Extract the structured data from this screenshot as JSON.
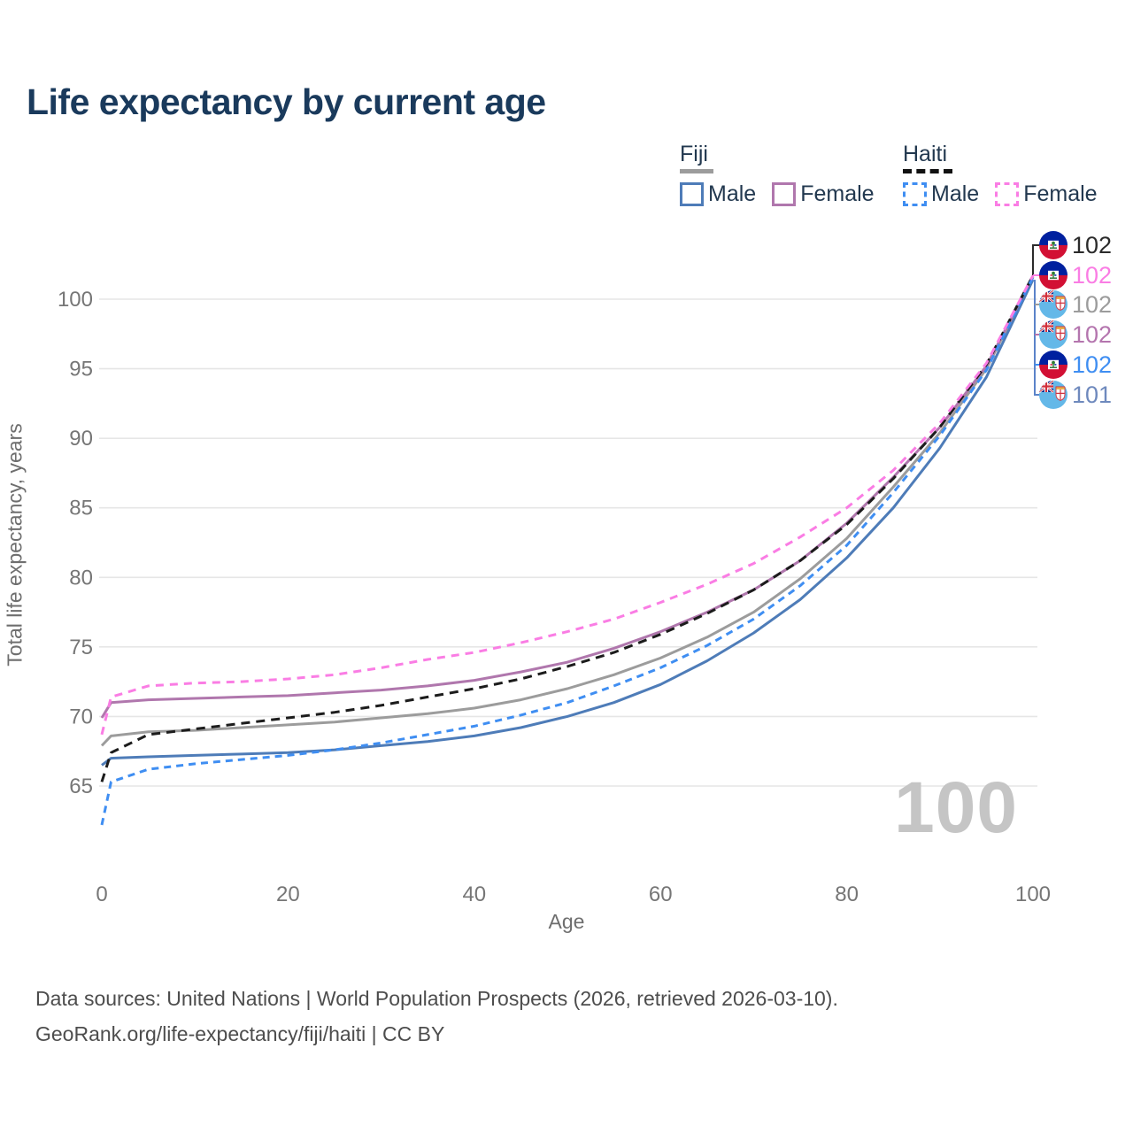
{
  "title": "Life expectancy by current age",
  "watermark": "100",
  "legend": {
    "groups": [
      {
        "label": "Fiji",
        "line_style": "solid",
        "underline_color": "#9c9c9c",
        "items": [
          {
            "label": "Male",
            "color": "#4e7cb8",
            "dashed": false
          },
          {
            "label": "Female",
            "color": "#b077ad",
            "dashed": false
          }
        ]
      },
      {
        "label": "Haiti",
        "line_style": "dashed",
        "underline_color": "#111111",
        "items": [
          {
            "label": "Male",
            "color": "#3f8ef2",
            "dashed": true
          },
          {
            "label": "Female",
            "color": "#fa7de4",
            "dashed": true
          }
        ]
      }
    ]
  },
  "y_axis": {
    "title": "Total life expectancy, years",
    "ticks": [
      65,
      70,
      75,
      80,
      85,
      90,
      95,
      100
    ]
  },
  "x_axis": {
    "title": "Age",
    "ticks": [
      0,
      20,
      40,
      60,
      80,
      100
    ]
  },
  "end_labels": [
    {
      "value": "102",
      "flag": "haiti",
      "color": "#2b2b2b",
      "series": "Haiti total"
    },
    {
      "value": "102",
      "flag": "haiti",
      "color": "#fa7de4",
      "series": "Haiti female"
    },
    {
      "value": "102",
      "flag": "fiji",
      "color": "#9c9c9c",
      "series": "Fiji total"
    },
    {
      "value": "102",
      "flag": "fiji",
      "color": "#b475ae",
      "series": "Fiji female"
    },
    {
      "value": "102",
      "flag": "haiti",
      "color": "#3f8ef2",
      "series": "Haiti male"
    },
    {
      "value": "101",
      "flag": "fiji",
      "color": "#6e89bd",
      "series": "Fiji male"
    }
  ],
  "footer": {
    "line1": "Data sources: United Nations | World Population Prospects (2026, retrieved 2026-03-10).",
    "line2": "GeoRank.org/life-expectancy/fiji/haiti | CC BY"
  },
  "chart_data": {
    "type": "line",
    "title": "Life expectancy by current age",
    "xlabel": "Age",
    "ylabel": "Total life expectancy, years",
    "xlim": [
      0,
      100
    ],
    "ylim": [
      62,
      102
    ],
    "grid": "horizontal",
    "x": [
      0,
      1,
      5,
      10,
      15,
      20,
      25,
      30,
      35,
      40,
      45,
      50,
      55,
      60,
      65,
      70,
      75,
      80,
      85,
      90,
      95,
      100
    ],
    "series": [
      {
        "name": "Fiji total",
        "color": "#9c9c9c",
        "dash": null,
        "values": [
          67.9,
          68.6,
          68.9,
          69.0,
          69.2,
          69.4,
          69.6,
          69.9,
          70.2,
          70.6,
          71.2,
          72.0,
          73.0,
          74.2,
          75.7,
          77.5,
          79.9,
          82.8,
          86.5,
          90.4,
          95.0,
          101.6
        ]
      },
      {
        "name": "Fiji female",
        "color": "#b077ad",
        "dash": null,
        "values": [
          69.9,
          71.0,
          71.2,
          71.3,
          71.4,
          71.5,
          71.7,
          71.9,
          72.2,
          72.6,
          73.2,
          73.9,
          74.9,
          76.1,
          77.5,
          79.1,
          81.2,
          83.9,
          87.2,
          90.8,
          95.2,
          101.6
        ]
      },
      {
        "name": "Fiji male",
        "color": "#4e7cb8",
        "dash": null,
        "values": [
          66.5,
          67.0,
          67.1,
          67.2,
          67.3,
          67.4,
          67.6,
          67.9,
          68.2,
          68.6,
          69.2,
          70.0,
          71.0,
          72.3,
          74.0,
          76.0,
          78.4,
          81.4,
          85.0,
          89.3,
          94.4,
          101.4
        ]
      },
      {
        "name": "Haiti total",
        "color": "#1c1c1c",
        "dash": "10 7",
        "values": [
          65.3,
          67.4,
          68.7,
          69.1,
          69.5,
          69.9,
          70.3,
          70.8,
          71.4,
          72.0,
          72.7,
          73.6,
          74.6,
          75.9,
          77.4,
          79.1,
          81.2,
          83.8,
          87.1,
          90.8,
          95.3,
          101.7
        ]
      },
      {
        "name": "Haiti male",
        "color": "#3f8ef2",
        "dash": "8 6",
        "values": [
          62.2,
          65.3,
          66.2,
          66.6,
          66.9,
          67.2,
          67.6,
          68.1,
          68.7,
          69.3,
          70.1,
          71.0,
          72.2,
          73.5,
          75.1,
          77.0,
          79.4,
          82.3,
          86.1,
          90.2,
          94.9,
          101.6
        ]
      },
      {
        "name": "Haiti female",
        "color": "#fa7de4",
        "dash": "9 7",
        "values": [
          68.7,
          71.4,
          72.2,
          72.4,
          72.5,
          72.7,
          73.0,
          73.5,
          74.1,
          74.6,
          75.3,
          76.1,
          77.0,
          78.2,
          79.5,
          81.0,
          82.9,
          85.0,
          87.7,
          91.1,
          95.4,
          101.7
        ]
      }
    ],
    "colors": {
      "grid": "#e6e6e6",
      "tick_text": "#767676",
      "title_text": "#1a3a5c",
      "watermark": "#c5c5c5"
    }
  }
}
